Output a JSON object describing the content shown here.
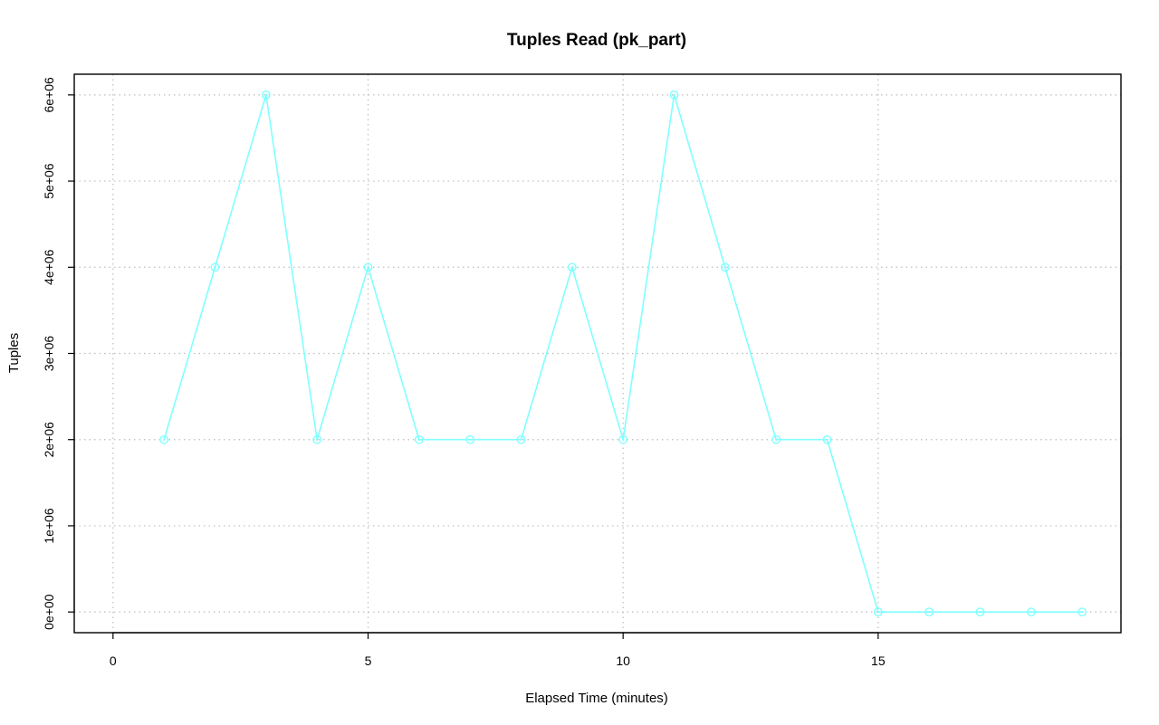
{
  "chart_data": {
    "type": "line",
    "title": "Tuples Read (pk_part)",
    "xlabel": "Elapsed Time (minutes)",
    "ylabel": "Tuples",
    "x": [
      1,
      2,
      3,
      4,
      5,
      6,
      7,
      8,
      9,
      10,
      11,
      12,
      13,
      14,
      15,
      16,
      17,
      18,
      19
    ],
    "series": [
      {
        "color": "#80ffff",
        "values": [
          2000000,
          4000000,
          6000000,
          2000000,
          4000000,
          2000000,
          2000000,
          2000000,
          4000000,
          2000000,
          6000000,
          4000000,
          2000000,
          2000000,
          0,
          0,
          0,
          0,
          0
        ]
      }
    ],
    "xlim": [
      -0.76,
      19.76
    ],
    "ylim": [
      -240000,
      6240000
    ],
    "xticks": [
      {
        "value": 0,
        "label": "0"
      },
      {
        "value": 5,
        "label": "5"
      },
      {
        "value": 10,
        "label": "10"
      },
      {
        "value": 15,
        "label": "15"
      }
    ],
    "yticks": [
      {
        "value": 0,
        "label": "0e+00"
      },
      {
        "value": 1000000,
        "label": "1e+06"
      },
      {
        "value": 2000000,
        "label": "2e+06"
      },
      {
        "value": 3000000,
        "label": "3e+06"
      },
      {
        "value": 4000000,
        "label": "4e+06"
      },
      {
        "value": 5000000,
        "label": "5e+06"
      },
      {
        "value": 6000000,
        "label": "6e+06"
      }
    ],
    "grid": true,
    "marker": "open-circle"
  }
}
